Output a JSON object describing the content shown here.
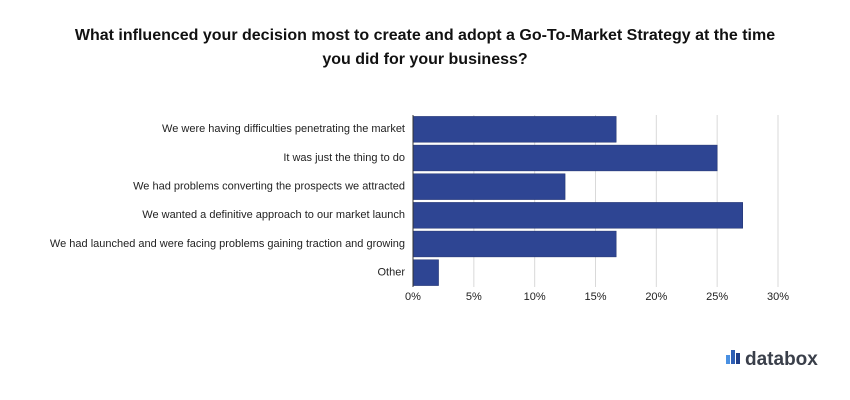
{
  "chart_data": {
    "type": "bar",
    "orientation": "horizontal",
    "title": "What influenced your decision most to create and adopt a Go-To-Market Strategy at the time you did for your business?",
    "categories": [
      "We were having difficulties penetrating the market",
      "It was just the thing to do",
      "We had problems converting the prospects we attracted",
      "We wanted a definitive approach to our market launch",
      "We had launched and were facing problems gaining traction and growing",
      "Other"
    ],
    "values": [
      16.7,
      25,
      12.5,
      27.1,
      16.7,
      2.1
    ],
    "color": "#2e4593",
    "xlim": [
      0,
      30
    ],
    "xticks": [
      {
        "value": 0,
        "label": "0%"
      },
      {
        "value": 5,
        "label": "5%"
      },
      {
        "value": 10,
        "label": "10%"
      },
      {
        "value": 15,
        "label": "15%"
      },
      {
        "value": 20,
        "label": "20%"
      },
      {
        "value": 25,
        "label": "25%"
      },
      {
        "value": 30,
        "label": "30%"
      }
    ],
    "grid": true
  },
  "logo": "databox"
}
